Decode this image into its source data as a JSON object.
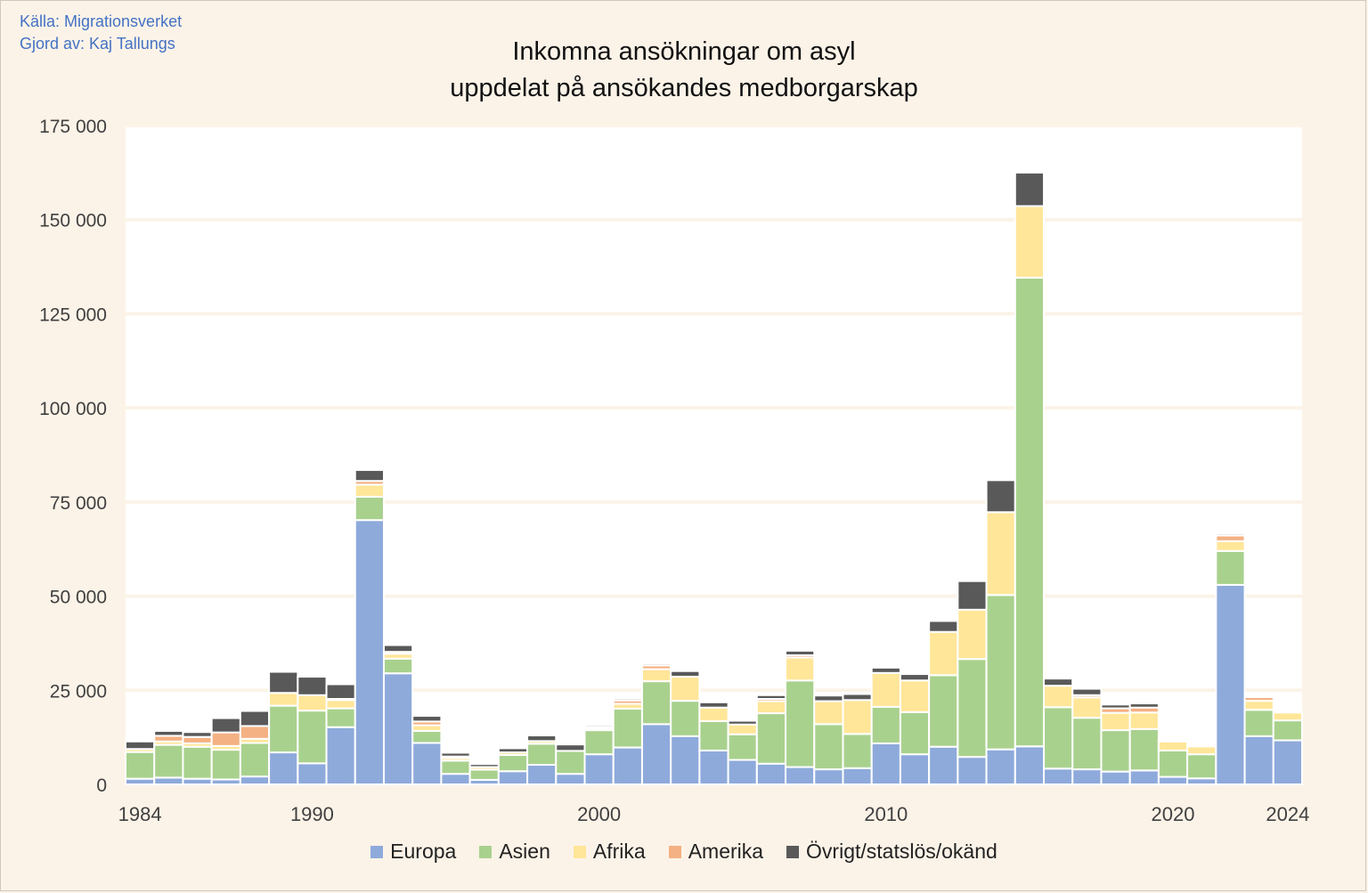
{
  "source_line": "Källa: Migrationsverket",
  "author_line": "Gjord av: Kaj Tallungs",
  "chart_data": {
    "type": "bar",
    "stacked": true,
    "title_lines": [
      "Inkomna ansökningar om asyl",
      "uppdelat på ansökandes medborgarskap"
    ],
    "xlabel": "",
    "ylabel": "",
    "ylim": [
      0,
      175000
    ],
    "yticks": [
      0,
      25000,
      50000,
      75000,
      100000,
      125000,
      150000,
      175000
    ],
    "ytick_labels": [
      "0",
      "25 000",
      "50 000",
      "75 000",
      "100 000",
      "125 000",
      "150 000",
      "175 000"
    ],
    "xtick_labels": [
      "1984",
      "1990",
      "2000",
      "2010",
      "2020",
      "2024"
    ],
    "grid": true,
    "legend_position": "bottom",
    "categories": [
      "1984",
      "1985",
      "1986",
      "1987",
      "1988",
      "1989",
      "1990",
      "1991",
      "1992",
      "1993",
      "1994",
      "1995",
      "1996",
      "1997",
      "1998",
      "1999",
      "2000",
      "2001",
      "2002",
      "2003",
      "2004",
      "2005",
      "2006",
      "2007",
      "2008",
      "2009",
      "2010",
      "2011",
      "2012",
      "2013",
      "2014",
      "2015",
      "2016",
      "2017",
      "2018",
      "2019",
      "2020",
      "2021",
      "2022",
      "2023",
      "2024"
    ],
    "series": [
      {
        "name": "Europa",
        "color": "#8eaadb",
        "values": [
          1500,
          1800,
          1500,
          1300,
          2100,
          8500,
          5600,
          15200,
          70200,
          29500,
          11000,
          2800,
          1200,
          3500,
          5200,
          2800,
          8000,
          9800,
          16000,
          12800,
          9000,
          6500,
          5500,
          4600,
          4000,
          4300,
          10900,
          8000,
          10000,
          7300,
          9300,
          10100,
          4200,
          4000,
          3400,
          3700,
          2000,
          1600,
          53000,
          12800,
          11700
        ]
      },
      {
        "name": "Asien",
        "color": "#a9d18e",
        "values": [
          7100,
          8700,
          8500,
          7900,
          8900,
          12400,
          14000,
          5000,
          6200,
          3900,
          3200,
          3500,
          2700,
          4300,
          5600,
          6100,
          6400,
          10300,
          11400,
          9400,
          7800,
          6800,
          13400,
          23000,
          12000,
          9100,
          9700,
          11200,
          19000,
          26000,
          41000,
          124500,
          16300,
          13700,
          11000,
          11000,
          7000,
          6400,
          9000,
          7000,
          5300
        ]
      },
      {
        "name": "Afrika",
        "color": "#ffe699",
        "values": [
          800,
          900,
          900,
          1000,
          1100,
          3400,
          4100,
          2200,
          3200,
          1300,
          1500,
          700,
          700,
          700,
          700,
          0,
          500,
          1300,
          3200,
          6400,
          3600,
          2600,
          3200,
          6100,
          6100,
          9000,
          9000,
          8400,
          11500,
          13100,
          22000,
          19000,
          5700,
          5400,
          4600,
          4400,
          2400,
          2100,
          2600,
          2400,
          2100
        ]
      },
      {
        "name": "Amerika",
        "color": "#f4b183",
        "values": [
          0,
          1500,
          1700,
          3600,
          3400,
          0,
          0,
          300,
          1000,
          500,
          1000,
          400,
          0,
          0,
          0,
          0,
          400,
          900,
          1000,
          0,
          0,
          0,
          600,
          600,
          0,
          0,
          0,
          0,
          0,
          0,
          0,
          0,
          0,
          600,
          1200,
          1300,
          0,
          0,
          1500,
          1000,
          0
        ]
      },
      {
        "name": "Övrigt/statslös/okänd",
        "color": "#595959",
        "values": [
          2000,
          1300,
          1300,
          3800,
          4000,
          5600,
          4900,
          3900,
          2900,
          1800,
          1500,
          1000,
          800,
          1100,
          1500,
          1700,
          500,
          500,
          500,
          1500,
          1400,
          1000,
          1000,
          1200,
          1500,
          1600,
          1400,
          1700,
          2900,
          7600,
          8500,
          8900,
          1900,
          1700,
          1000,
          1100,
          200,
          200,
          500,
          200,
          300
        ]
      }
    ]
  }
}
